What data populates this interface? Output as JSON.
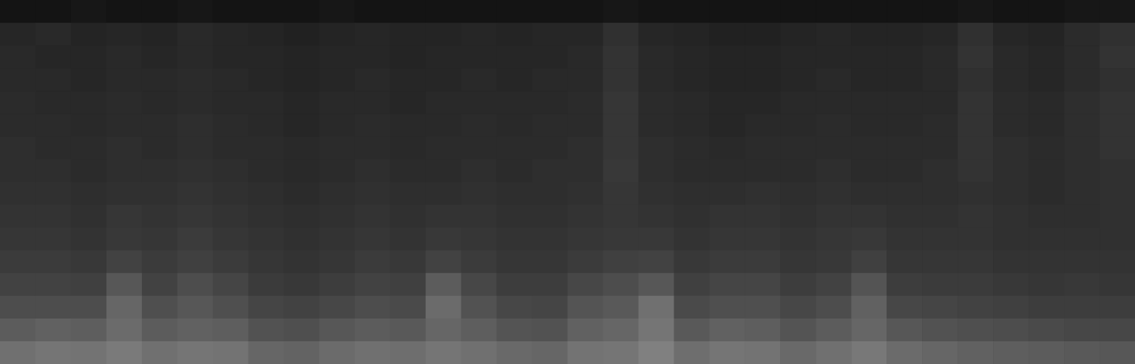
{
  "chart_data": {
    "type": "heatmap",
    "tick_labels": false,
    "color": "#ffffff",
    "clim": [
      0,
      100
    ],
    "cells": [
      [
        8,
        8,
        9,
        8,
        8,
        9,
        8,
        8,
        8,
        9,
        8,
        8,
        8,
        8,
        8,
        8,
        8,
        9,
        8,
        8,
        8,
        8,
        8,
        8,
        8,
        8,
        8,
        9,
        8,
        8,
        9,
        9
      ],
      [
        15,
        16,
        14,
        15,
        14,
        16,
        15,
        14,
        13,
        14,
        15,
        14,
        14,
        15,
        14,
        15,
        15,
        19,
        15,
        14,
        13,
        13,
        14,
        15,
        14,
        14,
        15,
        19,
        15,
        14,
        17,
        19
      ],
      [
        16,
        15,
        15,
        16,
        15,
        16,
        15,
        15,
        14,
        15,
        15,
        14,
        15,
        15,
        15,
        15,
        16,
        20,
        16,
        15,
        14,
        14,
        15,
        15,
        15,
        15,
        16,
        20,
        16,
        15,
        17,
        20
      ],
      [
        16,
        16,
        15,
        16,
        16,
        17,
        16,
        15,
        14,
        15,
        16,
        15,
        15,
        16,
        15,
        16,
        16,
        20,
        16,
        15,
        14,
        14,
        15,
        16,
        15,
        15,
        16,
        19,
        16,
        15,
        17,
        19
      ],
      [
        17,
        16,
        16,
        17,
        16,
        17,
        16,
        16,
        15,
        16,
        16,
        15,
        16,
        16,
        16,
        16,
        17,
        21,
        17,
        16,
        15,
        15,
        16,
        16,
        16,
        16,
        16,
        20,
        17,
        16,
        18,
        20
      ],
      [
        17,
        17,
        16,
        17,
        17,
        18,
        17,
        16,
        15,
        16,
        17,
        16,
        16,
        17,
        16,
        17,
        17,
        21,
        17,
        16,
        15,
        16,
        16,
        17,
        16,
        16,
        17,
        20,
        17,
        16,
        18,
        20
      ],
      [
        18,
        17,
        17,
        18,
        17,
        18,
        17,
        17,
        16,
        17,
        17,
        16,
        17,
        17,
        17,
        17,
        18,
        21,
        18,
        17,
        16,
        17,
        17,
        17,
        17,
        17,
        17,
        20,
        18,
        17,
        18,
        20
      ],
      [
        18,
        18,
        17,
        18,
        18,
        19,
        18,
        17,
        16,
        17,
        18,
        17,
        17,
        18,
        17,
        18,
        18,
        22,
        18,
        17,
        17,
        17,
        17,
        18,
        17,
        17,
        18,
        20,
        18,
        17,
        18,
        19
      ],
      [
        19,
        19,
        18,
        19,
        19,
        20,
        19,
        18,
        17,
        18,
        19,
        18,
        18,
        19,
        18,
        18,
        19,
        21,
        19,
        18,
        18,
        19,
        18,
        19,
        18,
        18,
        18,
        19,
        18,
        17,
        18,
        19
      ],
      [
        20,
        20,
        19,
        21,
        20,
        21,
        20,
        19,
        18,
        19,
        20,
        19,
        20,
        20,
        19,
        19,
        20,
        21,
        20,
        19,
        20,
        20,
        19,
        20,
        20,
        19,
        19,
        20,
        19,
        18,
        18,
        19
      ],
      [
        21,
        21,
        20,
        22,
        21,
        23,
        21,
        20,
        19,
        20,
        21,
        20,
        22,
        21,
        20,
        20,
        21,
        22,
        22,
        20,
        21,
        21,
        20,
        21,
        22,
        20,
        20,
        20,
        19,
        19,
        19,
        19
      ],
      [
        23,
        23,
        22,
        26,
        23,
        25,
        23,
        21,
        20,
        21,
        23,
        22,
        26,
        23,
        21,
        21,
        23,
        25,
        26,
        22,
        23,
        23,
        21,
        22,
        25,
        21,
        21,
        21,
        20,
        20,
        20,
        20
      ],
      [
        26,
        26,
        25,
        34,
        26,
        30,
        27,
        23,
        22,
        24,
        26,
        25,
        36,
        28,
        24,
        24,
        28,
        30,
        34,
        25,
        27,
        27,
        24,
        26,
        33,
        24,
        23,
        23,
        22,
        21,
        22,
        21
      ],
      [
        30,
        30,
        30,
        40,
        31,
        34,
        31,
        27,
        26,
        28,
        30,
        29,
        42,
        32,
        28,
        27,
        33,
        35,
        44,
        29,
        31,
        31,
        28,
        30,
        38,
        28,
        27,
        26,
        25,
        24,
        24,
        24
      ],
      [
        36,
        38,
        37,
        42,
        36,
        38,
        37,
        32,
        31,
        34,
        36,
        35,
        40,
        37,
        33,
        32,
        38,
        40,
        46,
        35,
        38,
        37,
        33,
        36,
        40,
        34,
        32,
        31,
        30,
        29,
        28,
        28
      ],
      [
        44,
        46,
        45,
        48,
        44,
        46,
        45,
        40,
        39,
        42,
        44,
        43,
        46,
        44,
        41,
        40,
        45,
        46,
        50,
        43,
        46,
        45,
        41,
        44,
        47,
        42,
        40,
        38,
        37,
        36,
        35,
        34
      ]
    ]
  }
}
